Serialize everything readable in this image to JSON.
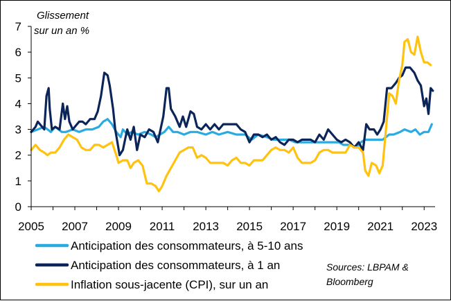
{
  "chart_data": {
    "type": "line",
    "unit_label": [
      "Glissement",
      "sur un an %"
    ],
    "ylim": [
      0,
      7
    ],
    "yticks": [
      0,
      1,
      2,
      3,
      4,
      5,
      6,
      7
    ],
    "xlim": [
      2005,
      2023.5
    ],
    "xticks": [
      2005,
      2007,
      2009,
      2011,
      2013,
      2015,
      2017,
      2019,
      2021,
      2023
    ],
    "grid": false,
    "legend_position": "bottom-left",
    "source": [
      "Sources: LBPAM &",
      "Bloomberg"
    ],
    "series": [
      {
        "name": "Anticipation des consommateurs, à 5-10 ans",
        "color": "#29ABE2",
        "points": [
          [
            2005.0,
            2.9
          ],
          [
            2005.3,
            3.0
          ],
          [
            2005.6,
            3.1
          ],
          [
            2005.9,
            2.9
          ],
          [
            2006.1,
            3.1
          ],
          [
            2006.4,
            2.9
          ],
          [
            2006.6,
            2.9
          ],
          [
            2006.9,
            3.0
          ],
          [
            2007.2,
            2.9
          ],
          [
            2007.5,
            3.0
          ],
          [
            2007.8,
            3.0
          ],
          [
            2008.1,
            3.1
          ],
          [
            2008.3,
            3.3
          ],
          [
            2008.5,
            3.4
          ],
          [
            2008.7,
            3.2
          ],
          [
            2008.9,
            2.9
          ],
          [
            2009.1,
            2.7
          ],
          [
            2009.2,
            3.0
          ],
          [
            2009.4,
            2.8
          ],
          [
            2009.6,
            2.9
          ],
          [
            2009.9,
            2.8
          ],
          [
            2010.2,
            2.9
          ],
          [
            2010.5,
            2.8
          ],
          [
            2010.7,
            2.7
          ],
          [
            2010.9,
            2.8
          ],
          [
            2011.1,
            2.9
          ],
          [
            2011.3,
            3.1
          ],
          [
            2011.5,
            2.9
          ],
          [
            2011.7,
            2.9
          ],
          [
            2012.0,
            2.8
          ],
          [
            2012.3,
            2.9
          ],
          [
            2012.6,
            2.9
          ],
          [
            2013.0,
            2.8
          ],
          [
            2013.3,
            2.9
          ],
          [
            2013.6,
            2.8
          ],
          [
            2014.0,
            2.9
          ],
          [
            2014.4,
            2.8
          ],
          [
            2014.8,
            2.8
          ],
          [
            2015.1,
            2.6
          ],
          [
            2015.4,
            2.8
          ],
          [
            2015.8,
            2.7
          ],
          [
            2016.1,
            2.6
          ],
          [
            2016.5,
            2.6
          ],
          [
            2016.8,
            2.6
          ],
          [
            2017.1,
            2.5
          ],
          [
            2017.5,
            2.5
          ],
          [
            2017.8,
            2.5
          ],
          [
            2018.1,
            2.5
          ],
          [
            2018.4,
            2.5
          ],
          [
            2018.8,
            2.5
          ],
          [
            2019.1,
            2.5
          ],
          [
            2019.3,
            2.4
          ],
          [
            2019.6,
            2.4
          ],
          [
            2019.9,
            2.3
          ],
          [
            2020.1,
            2.5
          ],
          [
            2020.3,
            2.6
          ],
          [
            2020.5,
            2.6
          ],
          [
            2020.8,
            2.6
          ],
          [
            2021.1,
            2.6
          ],
          [
            2021.4,
            2.8
          ],
          [
            2021.6,
            2.8
          ],
          [
            2021.9,
            2.9
          ],
          [
            2022.1,
            3.0
          ],
          [
            2022.4,
            2.9
          ],
          [
            2022.6,
            3.0
          ],
          [
            2022.8,
            2.8
          ],
          [
            2023.0,
            2.9
          ],
          [
            2023.2,
            2.9
          ],
          [
            2023.35,
            3.2
          ]
        ]
      },
      {
        "name": "Anticipation des consommateurs, à 1 an",
        "color": "#0B2559",
        "points": [
          [
            2005.0,
            2.9
          ],
          [
            2005.2,
            3.1
          ],
          [
            2005.3,
            3.3
          ],
          [
            2005.5,
            3.1
          ],
          [
            2005.6,
            3.0
          ],
          [
            2005.7,
            4.3
          ],
          [
            2005.8,
            4.6
          ],
          [
            2005.85,
            3.8
          ],
          [
            2005.95,
            3.0
          ],
          [
            2006.1,
            3.1
          ],
          [
            2006.3,
            3.0
          ],
          [
            2006.45,
            4.0
          ],
          [
            2006.55,
            3.4
          ],
          [
            2006.65,
            3.9
          ],
          [
            2006.75,
            3.3
          ],
          [
            2006.9,
            3.0
          ],
          [
            2007.0,
            3.1
          ],
          [
            2007.2,
            3.3
          ],
          [
            2007.35,
            3.3
          ],
          [
            2007.5,
            3.2
          ],
          [
            2007.7,
            3.4
          ],
          [
            2007.9,
            3.4
          ],
          [
            2008.05,
            3.7
          ],
          [
            2008.2,
            4.3
          ],
          [
            2008.35,
            5.2
          ],
          [
            2008.5,
            5.1
          ],
          [
            2008.6,
            4.7
          ],
          [
            2008.75,
            3.8
          ],
          [
            2008.85,
            3.0
          ],
          [
            2008.95,
            2.5
          ],
          [
            2009.05,
            2.0
          ],
          [
            2009.2,
            2.2
          ],
          [
            2009.3,
            2.6
          ],
          [
            2009.4,
            3.0
          ],
          [
            2009.55,
            2.6
          ],
          [
            2009.7,
            3.1
          ],
          [
            2009.85,
            2.2
          ],
          [
            2010.0,
            2.8
          ],
          [
            2010.2,
            2.7
          ],
          [
            2010.4,
            3.0
          ],
          [
            2010.6,
            2.9
          ],
          [
            2010.8,
            2.5
          ],
          [
            2010.9,
            2.9
          ],
          [
            2011.05,
            3.5
          ],
          [
            2011.2,
            4.6
          ],
          [
            2011.3,
            4.6
          ],
          [
            2011.4,
            3.8
          ],
          [
            2011.6,
            3.5
          ],
          [
            2011.8,
            3.1
          ],
          [
            2011.95,
            3.5
          ],
          [
            2012.1,
            3.1
          ],
          [
            2012.3,
            3.7
          ],
          [
            2012.45,
            3.6
          ],
          [
            2012.6,
            3.1
          ],
          [
            2012.8,
            3.0
          ],
          [
            2013.0,
            3.2
          ],
          [
            2013.2,
            3.0
          ],
          [
            2013.4,
            3.2
          ],
          [
            2013.6,
            3.0
          ],
          [
            2013.8,
            3.2
          ],
          [
            2014.0,
            3.2
          ],
          [
            2014.2,
            3.2
          ],
          [
            2014.4,
            3.2
          ],
          [
            2014.6,
            3.0
          ],
          [
            2014.8,
            2.9
          ],
          [
            2015.0,
            2.5
          ],
          [
            2015.2,
            2.8
          ],
          [
            2015.4,
            2.8
          ],
          [
            2015.6,
            2.7
          ],
          [
            2015.8,
            2.8
          ],
          [
            2016.0,
            2.6
          ],
          [
            2016.2,
            2.7
          ],
          [
            2016.4,
            2.5
          ],
          [
            2016.6,
            2.4
          ],
          [
            2016.8,
            2.6
          ],
          [
            2017.0,
            2.6
          ],
          [
            2017.2,
            2.5
          ],
          [
            2017.4,
            2.6
          ],
          [
            2017.6,
            2.6
          ],
          [
            2017.8,
            2.6
          ],
          [
            2018.0,
            2.5
          ],
          [
            2018.2,
            2.8
          ],
          [
            2018.4,
            2.6
          ],
          [
            2018.6,
            3.0
          ],
          [
            2018.8,
            2.8
          ],
          [
            2019.0,
            2.6
          ],
          [
            2019.2,
            2.5
          ],
          [
            2019.4,
            2.6
          ],
          [
            2019.6,
            2.5
          ],
          [
            2019.8,
            2.3
          ],
          [
            2020.0,
            2.5
          ],
          [
            2020.2,
            2.2
          ],
          [
            2020.35,
            3.2
          ],
          [
            2020.5,
            3.0
          ],
          [
            2020.7,
            3.0
          ],
          [
            2020.85,
            2.8
          ],
          [
            2021.0,
            3.0
          ],
          [
            2021.15,
            3.3
          ],
          [
            2021.3,
            4.6
          ],
          [
            2021.5,
            4.6
          ],
          [
            2021.7,
            4.8
          ],
          [
            2021.85,
            5.0
          ],
          [
            2022.0,
            5.1
          ],
          [
            2022.15,
            5.4
          ],
          [
            2022.35,
            5.4
          ],
          [
            2022.55,
            5.2
          ],
          [
            2022.7,
            4.9
          ],
          [
            2022.85,
            4.7
          ],
          [
            2023.0,
            3.9
          ],
          [
            2023.1,
            4.2
          ],
          [
            2023.2,
            3.6
          ],
          [
            2023.3,
            4.6
          ],
          [
            2023.4,
            4.5
          ]
        ]
      },
      {
        "name": "Inflation sous-jacente (CPI), sur un an",
        "color": "#FFC20E",
        "points": [
          [
            2005.0,
            2.2
          ],
          [
            2005.2,
            2.4
          ],
          [
            2005.4,
            2.2
          ],
          [
            2005.6,
            2.1
          ],
          [
            2005.75,
            2.0
          ],
          [
            2005.9,
            2.1
          ],
          [
            2006.1,
            2.1
          ],
          [
            2006.3,
            2.3
          ],
          [
            2006.5,
            2.6
          ],
          [
            2006.7,
            2.8
          ],
          [
            2006.9,
            2.7
          ],
          [
            2007.1,
            2.6
          ],
          [
            2007.3,
            2.3
          ],
          [
            2007.5,
            2.2
          ],
          [
            2007.7,
            2.2
          ],
          [
            2007.9,
            2.4
          ],
          [
            2008.1,
            2.4
          ],
          [
            2008.3,
            2.3
          ],
          [
            2008.5,
            2.4
          ],
          [
            2008.7,
            2.5
          ],
          [
            2008.9,
            2.0
          ],
          [
            2009.0,
            1.7
          ],
          [
            2009.2,
            1.8
          ],
          [
            2009.4,
            1.8
          ],
          [
            2009.55,
            1.5
          ],
          [
            2009.7,
            1.7
          ],
          [
            2009.9,
            1.8
          ],
          [
            2010.1,
            1.6
          ],
          [
            2010.3,
            0.9
          ],
          [
            2010.5,
            0.9
          ],
          [
            2010.7,
            0.8
          ],
          [
            2010.85,
            0.6
          ],
          [
            2011.0,
            0.8
          ],
          [
            2011.2,
            1.2
          ],
          [
            2011.4,
            1.5
          ],
          [
            2011.6,
            1.8
          ],
          [
            2011.8,
            2.1
          ],
          [
            2012.0,
            2.2
          ],
          [
            2012.2,
            2.3
          ],
          [
            2012.4,
            2.3
          ],
          [
            2012.6,
            1.9
          ],
          [
            2012.8,
            2.0
          ],
          [
            2013.0,
            1.9
          ],
          [
            2013.2,
            1.7
          ],
          [
            2013.4,
            1.7
          ],
          [
            2013.6,
            1.7
          ],
          [
            2013.8,
            1.7
          ],
          [
            2014.0,
            1.6
          ],
          [
            2014.2,
            1.8
          ],
          [
            2014.4,
            1.9
          ],
          [
            2014.6,
            1.7
          ],
          [
            2014.8,
            1.7
          ],
          [
            2015.0,
            1.6
          ],
          [
            2015.2,
            1.8
          ],
          [
            2015.4,
            1.8
          ],
          [
            2015.6,
            1.8
          ],
          [
            2015.8,
            2.0
          ],
          [
            2016.0,
            2.2
          ],
          [
            2016.2,
            2.3
          ],
          [
            2016.4,
            2.2
          ],
          [
            2016.6,
            2.2
          ],
          [
            2016.8,
            2.1
          ],
          [
            2017.0,
            2.3
          ],
          [
            2017.2,
            1.9
          ],
          [
            2017.4,
            1.7
          ],
          [
            2017.6,
            1.7
          ],
          [
            2017.8,
            1.7
          ],
          [
            2018.0,
            1.8
          ],
          [
            2018.2,
            2.1
          ],
          [
            2018.4,
            2.2
          ],
          [
            2018.6,
            2.2
          ],
          [
            2018.8,
            2.1
          ],
          [
            2019.0,
            2.1
          ],
          [
            2019.2,
            2.1
          ],
          [
            2019.4,
            2.1
          ],
          [
            2019.6,
            2.4
          ],
          [
            2019.8,
            2.3
          ],
          [
            2020.0,
            2.3
          ],
          [
            2020.2,
            2.1
          ],
          [
            2020.3,
            1.4
          ],
          [
            2020.45,
            1.2
          ],
          [
            2020.6,
            1.7
          ],
          [
            2020.8,
            1.6
          ],
          [
            2020.95,
            1.3
          ],
          [
            2021.1,
            1.6
          ],
          [
            2021.25,
            3.0
          ],
          [
            2021.4,
            4.4
          ],
          [
            2021.55,
            4.3
          ],
          [
            2021.7,
            4.0
          ],
          [
            2021.85,
            4.9
          ],
          [
            2022.0,
            5.5
          ],
          [
            2022.1,
            6.4
          ],
          [
            2022.25,
            6.5
          ],
          [
            2022.4,
            6.0
          ],
          [
            2022.55,
            5.9
          ],
          [
            2022.7,
            6.6
          ],
          [
            2022.85,
            6.0
          ],
          [
            2023.0,
            5.6
          ],
          [
            2023.15,
            5.6
          ],
          [
            2023.3,
            5.5
          ]
        ]
      }
    ]
  }
}
